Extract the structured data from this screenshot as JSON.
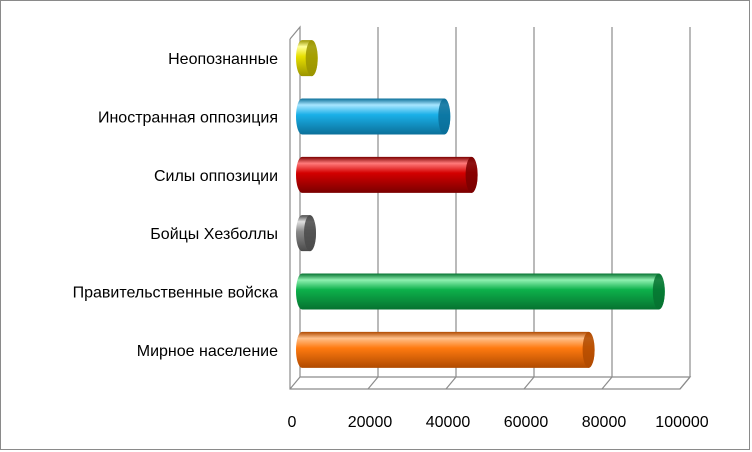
{
  "chart_data": {
    "type": "bar",
    "orientation": "horizontal",
    "categories": [
      "Неопознанные",
      "Иностранная оппозиция",
      "Силы оппозиции",
      "Бойцы Хезболлы",
      "Правительственные войска",
      "Мирное население"
    ],
    "values": [
      3000,
      37000,
      44000,
      1500,
      92000,
      74000
    ],
    "colors": [
      "#e8e000",
      "#1ab0e8",
      "#d40000",
      "#8a8a8a",
      "#0db14b",
      "#ff7a10"
    ],
    "dark_colors": [
      "#9a9400",
      "#0b6f99",
      "#7a0000",
      "#4a4a4a",
      "#067230",
      "#b04a00"
    ],
    "light_colors": [
      "#ffff9a",
      "#a8e6ff",
      "#ff7a7a",
      "#e0e0e0",
      "#8ff0b0",
      "#ffc08a"
    ],
    "xlim": [
      0,
      100000
    ],
    "xticks": [
      "0",
      "20000",
      "40000",
      "60000",
      "80000",
      "100000"
    ],
    "xtick_values": [
      0,
      20000,
      40000,
      60000,
      80000,
      100000
    ],
    "grid": true,
    "legend": "none",
    "title": "",
    "xlabel": "",
    "ylabel": ""
  }
}
